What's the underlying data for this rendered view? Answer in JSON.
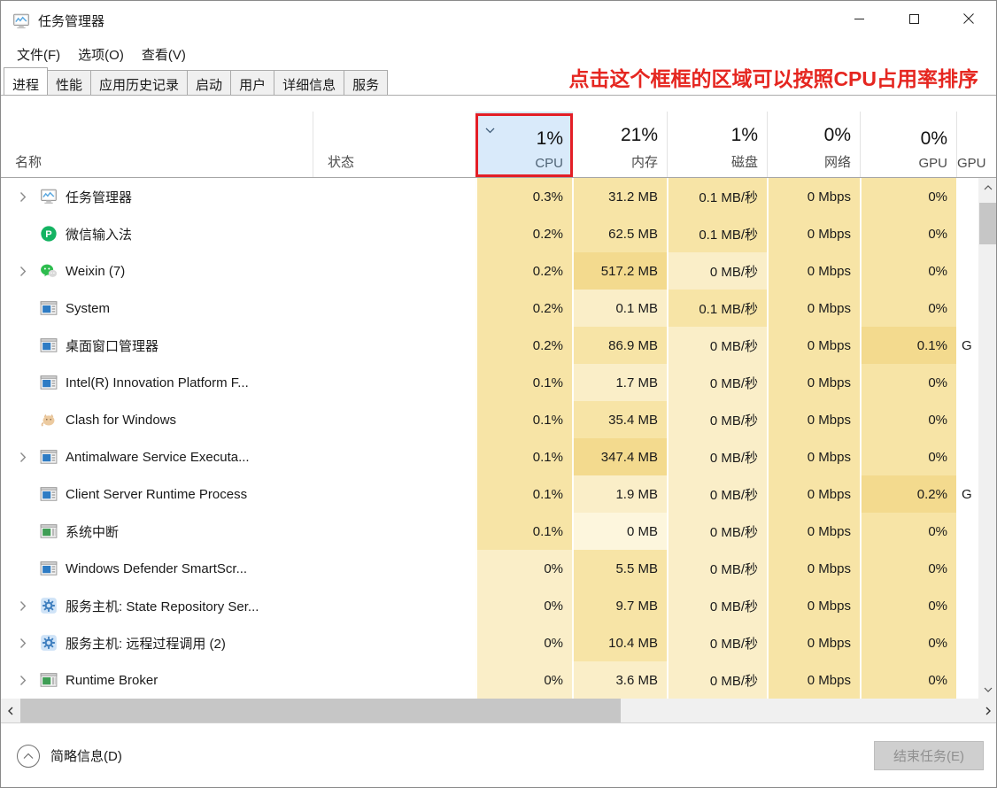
{
  "window": {
    "title": "任务管理器",
    "controls": [
      {
        "name": "minimize"
      },
      {
        "name": "maximize"
      },
      {
        "name": "close"
      }
    ]
  },
  "menu": {
    "items": [
      {
        "label": "文件(F)"
      },
      {
        "label": "选项(O)"
      },
      {
        "label": "查看(V)"
      }
    ]
  },
  "tabs": {
    "items": [
      {
        "label": "进程",
        "active": true
      },
      {
        "label": "性能",
        "active": false
      },
      {
        "label": "应用历史记录",
        "active": false
      },
      {
        "label": "启动",
        "active": false
      },
      {
        "label": "用户",
        "active": false
      },
      {
        "label": "详细信息",
        "active": false
      },
      {
        "label": "服务",
        "active": false
      }
    ]
  },
  "annotation": {
    "text": "点击这个框框的区域可以按照CPU占用率排序",
    "color": "#e52620"
  },
  "table": {
    "columns": [
      {
        "id": "name",
        "label": "名称",
        "total": ""
      },
      {
        "id": "status",
        "label": "状态",
        "total": ""
      },
      {
        "id": "cpu",
        "label": "CPU",
        "total": "1%",
        "sorted": "desc",
        "highlighted": true
      },
      {
        "id": "memory",
        "label": "内存",
        "total": "21%"
      },
      {
        "id": "disk",
        "label": "磁盘",
        "total": "1%"
      },
      {
        "id": "network",
        "label": "网络",
        "total": "0%"
      },
      {
        "id": "gpu",
        "label": "GPU",
        "total": "0%"
      },
      {
        "id": "gpu_engine",
        "label": "GPU",
        "total": ""
      }
    ],
    "rows": [
      {
        "name": "任务管理器",
        "icon": "taskmgr-icon",
        "expandable": true,
        "status": "",
        "cpu": "0.3%",
        "memory": "31.2 MB",
        "disk": "0.1 MB/秒",
        "network": "0 Mbps",
        "gpu": "0%",
        "gpu_engine": "",
        "shades": [
          2,
          2,
          2,
          2,
          2
        ]
      },
      {
        "name": "微信输入法",
        "icon": "wechat-input-icon",
        "expandable": false,
        "status": "",
        "cpu": "0.2%",
        "memory": "62.5 MB",
        "disk": "0.1 MB/秒",
        "network": "0 Mbps",
        "gpu": "0%",
        "gpu_engine": "",
        "shades": [
          2,
          2,
          2,
          2,
          2
        ]
      },
      {
        "name": "Weixin (7)",
        "icon": "wechat-icon",
        "expandable": true,
        "status": "",
        "cpu": "0.2%",
        "memory": "517.2 MB",
        "disk": "0 MB/秒",
        "network": "0 Mbps",
        "gpu": "0%",
        "gpu_engine": "",
        "shades": [
          2,
          3,
          1,
          2,
          2
        ]
      },
      {
        "name": "System",
        "icon": "window-blue-icon",
        "expandable": false,
        "status": "",
        "cpu": "0.2%",
        "memory": "0.1 MB",
        "disk": "0.1 MB/秒",
        "network": "0 Mbps",
        "gpu": "0%",
        "gpu_engine": "",
        "shades": [
          2,
          1,
          2,
          2,
          2
        ]
      },
      {
        "name": "桌面窗口管理器",
        "icon": "window-blue-icon",
        "expandable": false,
        "status": "",
        "cpu": "0.2%",
        "memory": "86.9 MB",
        "disk": "0 MB/秒",
        "network": "0 Mbps",
        "gpu": "0.1%",
        "gpu_engine": "G",
        "shades": [
          2,
          2,
          1,
          2,
          3
        ]
      },
      {
        "name": "Intel(R) Innovation Platform F...",
        "icon": "window-blue-icon",
        "expandable": false,
        "status": "",
        "cpu": "0.1%",
        "memory": "1.7 MB",
        "disk": "0 MB/秒",
        "network": "0 Mbps",
        "gpu": "0%",
        "gpu_engine": "",
        "shades": [
          2,
          1,
          1,
          2,
          2
        ]
      },
      {
        "name": "Clash for Windows",
        "icon": "cat-icon",
        "expandable": false,
        "status": "",
        "cpu": "0.1%",
        "memory": "35.4 MB",
        "disk": "0 MB/秒",
        "network": "0 Mbps",
        "gpu": "0%",
        "gpu_engine": "",
        "shades": [
          2,
          2,
          1,
          2,
          2
        ]
      },
      {
        "name": "Antimalware Service Executa...",
        "icon": "window-blue-icon",
        "expandable": true,
        "status": "",
        "cpu": "0.1%",
        "memory": "347.4 MB",
        "disk": "0 MB/秒",
        "network": "0 Mbps",
        "gpu": "0%",
        "gpu_engine": "",
        "shades": [
          2,
          3,
          1,
          2,
          2
        ]
      },
      {
        "name": "Client Server Runtime Process",
        "icon": "window-blue-icon",
        "expandable": false,
        "status": "",
        "cpu": "0.1%",
        "memory": "1.9 MB",
        "disk": "0 MB/秒",
        "network": "0 Mbps",
        "gpu": "0.2%",
        "gpu_engine": "G",
        "shades": [
          2,
          1,
          1,
          2,
          3
        ]
      },
      {
        "name": "系统中断",
        "icon": "window-green-icon",
        "expandable": false,
        "status": "",
        "cpu": "0.1%",
        "memory": "0 MB",
        "disk": "0 MB/秒",
        "network": "0 Mbps",
        "gpu": "0%",
        "gpu_engine": "",
        "shades": [
          2,
          0,
          1,
          2,
          2
        ]
      },
      {
        "name": "Windows Defender SmartScr...",
        "icon": "window-blue-icon",
        "expandable": false,
        "status": "",
        "cpu": "0%",
        "memory": "5.5 MB",
        "disk": "0 MB/秒",
        "network": "0 Mbps",
        "gpu": "0%",
        "gpu_engine": "",
        "shades": [
          1,
          2,
          1,
          2,
          2
        ]
      },
      {
        "name": "服务主机: State Repository Ser...",
        "icon": "gear-icon",
        "expandable": true,
        "status": "",
        "cpu": "0%",
        "memory": "9.7 MB",
        "disk": "0 MB/秒",
        "network": "0 Mbps",
        "gpu": "0%",
        "gpu_engine": "",
        "shades": [
          1,
          2,
          1,
          2,
          2
        ]
      },
      {
        "name": "服务主机: 远程过程调用 (2)",
        "icon": "gear-icon",
        "expandable": true,
        "status": "",
        "cpu": "0%",
        "memory": "10.4 MB",
        "disk": "0 MB/秒",
        "network": "0 Mbps",
        "gpu": "0%",
        "gpu_engine": "",
        "shades": [
          1,
          2,
          1,
          2,
          2
        ]
      },
      {
        "name": "Runtime Broker",
        "icon": "window-green-icon",
        "expandable": true,
        "status": "",
        "cpu": "0%",
        "memory": "3.6 MB",
        "disk": "0 MB/秒",
        "network": "0 Mbps",
        "gpu": "0%",
        "gpu_engine": "",
        "shades": [
          1,
          1,
          1,
          2,
          2
        ]
      }
    ]
  },
  "heat_palette": [
    "#fdf6dd",
    "#faeec8",
    "#f7e4a6",
    "#f3da8e"
  ],
  "colors": {
    "sorted_header_bg": "#d9eafa",
    "annotation_red": "#e52620",
    "red_box": "#e31e26"
  },
  "footer": {
    "details_label": "简略信息(D)",
    "end_task_label": "结束任务(E)"
  }
}
